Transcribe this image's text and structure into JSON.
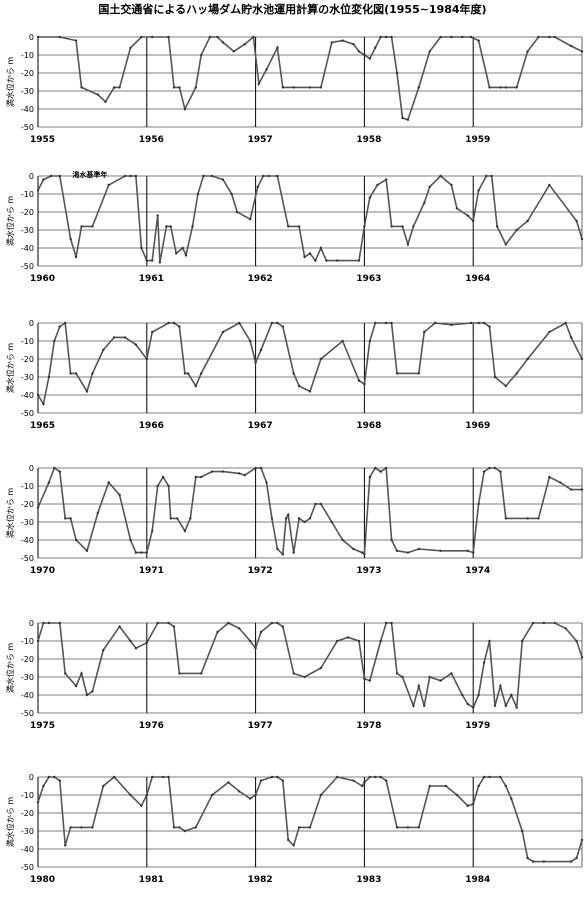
{
  "title": "国土交通省によるハッ場ダム貯水池運用計算の水位変化図(1955~1984年度)",
  "chart_data": {
    "type": "line",
    "title": "国土交通省によるハッ場ダム貯水池運用計算の水位変化図(1955~1984年度)",
    "ylabel": "満水位から m",
    "ylim": [
      -50,
      0
    ],
    "yticks": [
      0,
      -10,
      -20,
      -30,
      -40,
      -50
    ],
    "grid": true,
    "annotation": {
      "text": "渇水基準年",
      "panel": 1,
      "year": 1960.5
    },
    "panels": [
      {
        "years": [
          "1955",
          "1956",
          "1957",
          "1958",
          "1959"
        ],
        "x": [
          1955,
          1955.2,
          1955.35,
          1955.4,
          1955.55,
          1955.62,
          1955.7,
          1955.75,
          1955.85,
          1955.95,
          1956.05,
          1956.2,
          1956.25,
          1956.3,
          1956.35,
          1956.45,
          1956.5,
          1956.58,
          1956.65,
          1956.7,
          1956.8,
          1956.9,
          1956.98,
          1957.03,
          1957.1,
          1957.2,
          1957.25,
          1957.35,
          1957.5,
          1957.6,
          1957.7,
          1957.8,
          1957.9,
          1957.95,
          1958.0,
          1958.05,
          1958.1,
          1958.15,
          1958.2,
          1958.25,
          1958.3,
          1958.35,
          1958.4,
          1958.5,
          1958.6,
          1958.7,
          1958.8,
          1958.9,
          1958.98,
          1959.05,
          1959.15,
          1959.25,
          1959.3,
          1959.4,
          1959.5,
          1959.6,
          1959.7,
          1959.75,
          1959.9,
          1960.0
        ],
        "y": [
          0,
          0,
          -2,
          -28,
          -32,
          -36,
          -28,
          -28,
          -6,
          0,
          0,
          0,
          -28,
          -28,
          -40,
          -28,
          -10,
          0,
          0,
          -3,
          -8,
          -4,
          0,
          -26,
          -18,
          -6,
          -28,
          -28,
          -28,
          -28,
          -3,
          -2,
          -4,
          -8,
          -10,
          -12,
          -6,
          0,
          0,
          0,
          -20,
          -45,
          -46,
          -28,
          -8,
          0,
          0,
          0,
          0,
          -2,
          -28,
          -28,
          -28,
          -28,
          -8,
          0,
          0,
          0,
          -5,
          -8
        ]
      },
      {
        "years": [
          "1960",
          "1961",
          "1962",
          "1963",
          "1964"
        ],
        "x": [
          1960,
          1960.05,
          1960.12,
          1960.2,
          1960.3,
          1960.35,
          1960.4,
          1960.5,
          1960.65,
          1960.8,
          1960.85,
          1960.9,
          1960.95,
          1961.0,
          1961.05,
          1961.1,
          1961.12,
          1961.18,
          1961.22,
          1961.27,
          1961.33,
          1961.36,
          1961.42,
          1961.47,
          1961.52,
          1961.6,
          1961.7,
          1961.78,
          1961.83,
          1961.95,
          1962.02,
          1962.07,
          1962.12,
          1962.2,
          1962.3,
          1962.4,
          1962.45,
          1962.5,
          1962.55,
          1962.6,
          1962.65,
          1962.75,
          1962.95,
          1963.0,
          1963.05,
          1963.12,
          1963.2,
          1963.25,
          1963.35,
          1963.4,
          1963.45,
          1963.55,
          1963.6,
          1963.7,
          1963.8,
          1963.85,
          1963.95,
          1964.0,
          1964.05,
          1964.12,
          1964.17,
          1964.22,
          1964.3,
          1964.4,
          1964.5,
          1964.7,
          1964.95,
          1965.0
        ],
        "y": [
          -8,
          -2,
          0,
          0,
          -35,
          -45,
          -28,
          -28,
          -5,
          0,
          0,
          0,
          -40,
          -47,
          -47,
          -22,
          -48,
          -28,
          -28,
          -43,
          -40,
          -44,
          -28,
          -10,
          0,
          0,
          -2,
          -10,
          -20,
          -24,
          -6,
          0,
          0,
          0,
          -28,
          -28,
          -45,
          -43,
          -47,
          -40,
          -47,
          -47,
          -47,
          -28,
          -12,
          -5,
          -2,
          -28,
          -28,
          -38,
          -28,
          -15,
          -6,
          0,
          -5,
          -18,
          -22,
          -25,
          -8,
          0,
          0,
          -28,
          -38,
          -30,
          -25,
          -5,
          -25,
          -35
        ]
      },
      {
        "years": [
          "1965",
          "1966",
          "1967",
          "1968",
          "1969"
        ],
        "x": [
          1965,
          1965.05,
          1965.1,
          1965.15,
          1965.2,
          1965.25,
          1965.3,
          1965.35,
          1965.45,
          1965.5,
          1965.6,
          1965.7,
          1965.8,
          1965.9,
          1966.0,
          1966.05,
          1966.2,
          1966.25,
          1966.3,
          1966.35,
          1966.38,
          1966.45,
          1966.5,
          1966.7,
          1966.85,
          1966.95,
          1967.0,
          1967.05,
          1967.15,
          1967.2,
          1967.25,
          1967.35,
          1967.4,
          1967.5,
          1967.6,
          1967.8,
          1967.95,
          1968.0,
          1968.05,
          1968.1,
          1968.2,
          1968.25,
          1968.3,
          1968.5,
          1968.55,
          1968.65,
          1968.8,
          1968.98,
          1969.05,
          1969.1,
          1969.15,
          1969.2,
          1969.3,
          1969.4,
          1969.5,
          1969.7,
          1969.85,
          1969.9,
          1970.0
        ],
        "y": [
          -40,
          -45,
          -30,
          -10,
          -2,
          0,
          -28,
          -28,
          -38,
          -28,
          -15,
          -8,
          -8,
          -12,
          -20,
          -5,
          0,
          0,
          -2,
          -28,
          -28,
          -35,
          -28,
          -5,
          0,
          -10,
          -22,
          -15,
          0,
          0,
          -2,
          -28,
          -35,
          -38,
          -20,
          -10,
          -32,
          -34,
          -10,
          0,
          0,
          0,
          -28,
          -28,
          -5,
          0,
          -1,
          0,
          0,
          0,
          -2,
          -30,
          -35,
          -28,
          -20,
          -5,
          0,
          -8,
          -20
        ]
      },
      {
        "years": [
          "1970",
          "1971",
          "1972",
          "1973",
          "1974"
        ],
        "x": [
          1970,
          1970.1,
          1970.15,
          1970.2,
          1970.25,
          1970.3,
          1970.35,
          1970.45,
          1970.55,
          1970.65,
          1970.75,
          1970.85,
          1970.9,
          1970.95,
          1971.0,
          1971.05,
          1971.1,
          1971.15,
          1971.2,
          1971.22,
          1971.28,
          1971.35,
          1971.4,
          1971.45,
          1971.5,
          1971.6,
          1971.7,
          1971.85,
          1971.9,
          1972.0,
          1972.05,
          1972.1,
          1972.15,
          1972.2,
          1972.25,
          1972.28,
          1972.3,
          1972.35,
          1972.4,
          1972.45,
          1972.5,
          1972.55,
          1972.6,
          1972.7,
          1972.8,
          1972.9,
          1972.98,
          1973.0,
          1973.05,
          1973.1,
          1973.15,
          1973.2,
          1973.25,
          1973.3,
          1973.4,
          1973.5,
          1973.7,
          1973.95,
          1974.0,
          1974.05,
          1974.1,
          1974.15,
          1974.2,
          1974.25,
          1974.3,
          1974.5,
          1974.6,
          1974.7,
          1974.8,
          1974.9,
          1975.0
        ],
        "y": [
          -22,
          -8,
          0,
          -2,
          -28,
          -28,
          -40,
          -46,
          -25,
          -8,
          -15,
          -40,
          -47,
          -47,
          -47,
          -35,
          -10,
          -5,
          -10,
          -28,
          -28,
          -35,
          -28,
          -5,
          -5,
          -2,
          -2,
          -3,
          -4,
          0,
          0,
          -8,
          -28,
          -45,
          -48,
          -28,
          -26,
          -47,
          -28,
          -30,
          -28,
          -20,
          -20,
          -30,
          -40,
          -45,
          -47,
          -48,
          -5,
          0,
          -2,
          0,
          -40,
          -46,
          -47,
          -45,
          -46,
          -46,
          -47,
          -20,
          -2,
          0,
          0,
          -2,
          -28,
          -28,
          -28,
          -5,
          -8,
          -12,
          -12
        ]
      },
      {
        "years": [
          "1975",
          "1976",
          "1977",
          "1978",
          "1979"
        ],
        "x": [
          1975,
          1975.05,
          1975.1,
          1975.2,
          1975.25,
          1975.35,
          1975.4,
          1975.45,
          1975.5,
          1975.6,
          1975.75,
          1975.85,
          1975.9,
          1976.0,
          1976.1,
          1976.2,
          1976.25,
          1976.3,
          1976.5,
          1976.65,
          1976.75,
          1976.85,
          1976.95,
          1977.0,
          1977.05,
          1977.15,
          1977.2,
          1977.25,
          1977.35,
          1977.45,
          1977.6,
          1977.75,
          1977.85,
          1977.95,
          1978.0,
          1978.05,
          1978.15,
          1978.2,
          1978.25,
          1978.3,
          1978.35,
          1978.45,
          1978.5,
          1978.55,
          1978.6,
          1978.7,
          1978.8,
          1978.9,
          1978.95,
          1979.0,
          1979.05,
          1979.1,
          1979.15,
          1979.2,
          1979.25,
          1979.3,
          1979.35,
          1979.4,
          1979.45,
          1979.55,
          1979.65,
          1979.75,
          1979.85,
          1979.95,
          1980.0
        ],
        "y": [
          -10,
          0,
          0,
          0,
          -28,
          -35,
          -28,
          -40,
          -38,
          -15,
          -2,
          -10,
          -14,
          -11,
          0,
          0,
          -2,
          -28,
          -28,
          -5,
          0,
          -3,
          -10,
          -14,
          -5,
          0,
          0,
          -2,
          -28,
          -30,
          -25,
          -10,
          -8,
          -10,
          -31,
          -32,
          -10,
          0,
          0,
          -28,
          -30,
          -46,
          -35,
          -46,
          -30,
          -32,
          -28,
          -40,
          -45,
          -47,
          -40,
          -22,
          -10,
          -46,
          -35,
          -46,
          -40,
          -47,
          -10,
          0,
          0,
          0,
          -3,
          -10,
          -19
        ]
      },
      {
        "years": [
          "1980",
          "1981",
          "1982",
          "1983",
          "1984"
        ],
        "x": [
          1980,
          1980.05,
          1980.1,
          1980.15,
          1980.2,
          1980.25,
          1980.3,
          1980.4,
          1980.5,
          1980.6,
          1980.7,
          1980.85,
          1980.95,
          1981.0,
          1981.05,
          1981.15,
          1981.2,
          1981.25,
          1981.3,
          1981.35,
          1981.45,
          1981.6,
          1981.75,
          1981.85,
          1981.95,
          1982.0,
          1982.05,
          1982.15,
          1982.2,
          1982.25,
          1982.3,
          1982.35,
          1982.4,
          1982.5,
          1982.6,
          1982.75,
          1982.9,
          1982.98,
          1983.0,
          1983.05,
          1983.1,
          1983.15,
          1983.2,
          1983.3,
          1983.4,
          1983.5,
          1983.6,
          1983.75,
          1983.85,
          1983.95,
          1984.0,
          1984.05,
          1984.1,
          1984.15,
          1984.25,
          1984.3,
          1984.35,
          1984.45,
          1984.5,
          1984.55,
          1984.65,
          1984.9,
          1984.95,
          1985.0
        ],
        "y": [
          -14,
          -5,
          0,
          0,
          -2,
          -38,
          -28,
          -28,
          -28,
          -5,
          0,
          -10,
          -16,
          -10,
          0,
          0,
          0,
          -28,
          -28,
          -30,
          -28,
          -10,
          -3,
          -8,
          -12,
          -10,
          -2,
          0,
          0,
          -2,
          -35,
          -38,
          -28,
          -28,
          -10,
          0,
          -2,
          -5,
          -3,
          0,
          0,
          0,
          -2,
          -28,
          -28,
          -28,
          -5,
          -5,
          -10,
          -16,
          -15,
          -5,
          0,
          0,
          0,
          -5,
          -12,
          -30,
          -45,
          -47,
          -47,
          -47,
          -45,
          -35
        ]
      }
    ]
  }
}
